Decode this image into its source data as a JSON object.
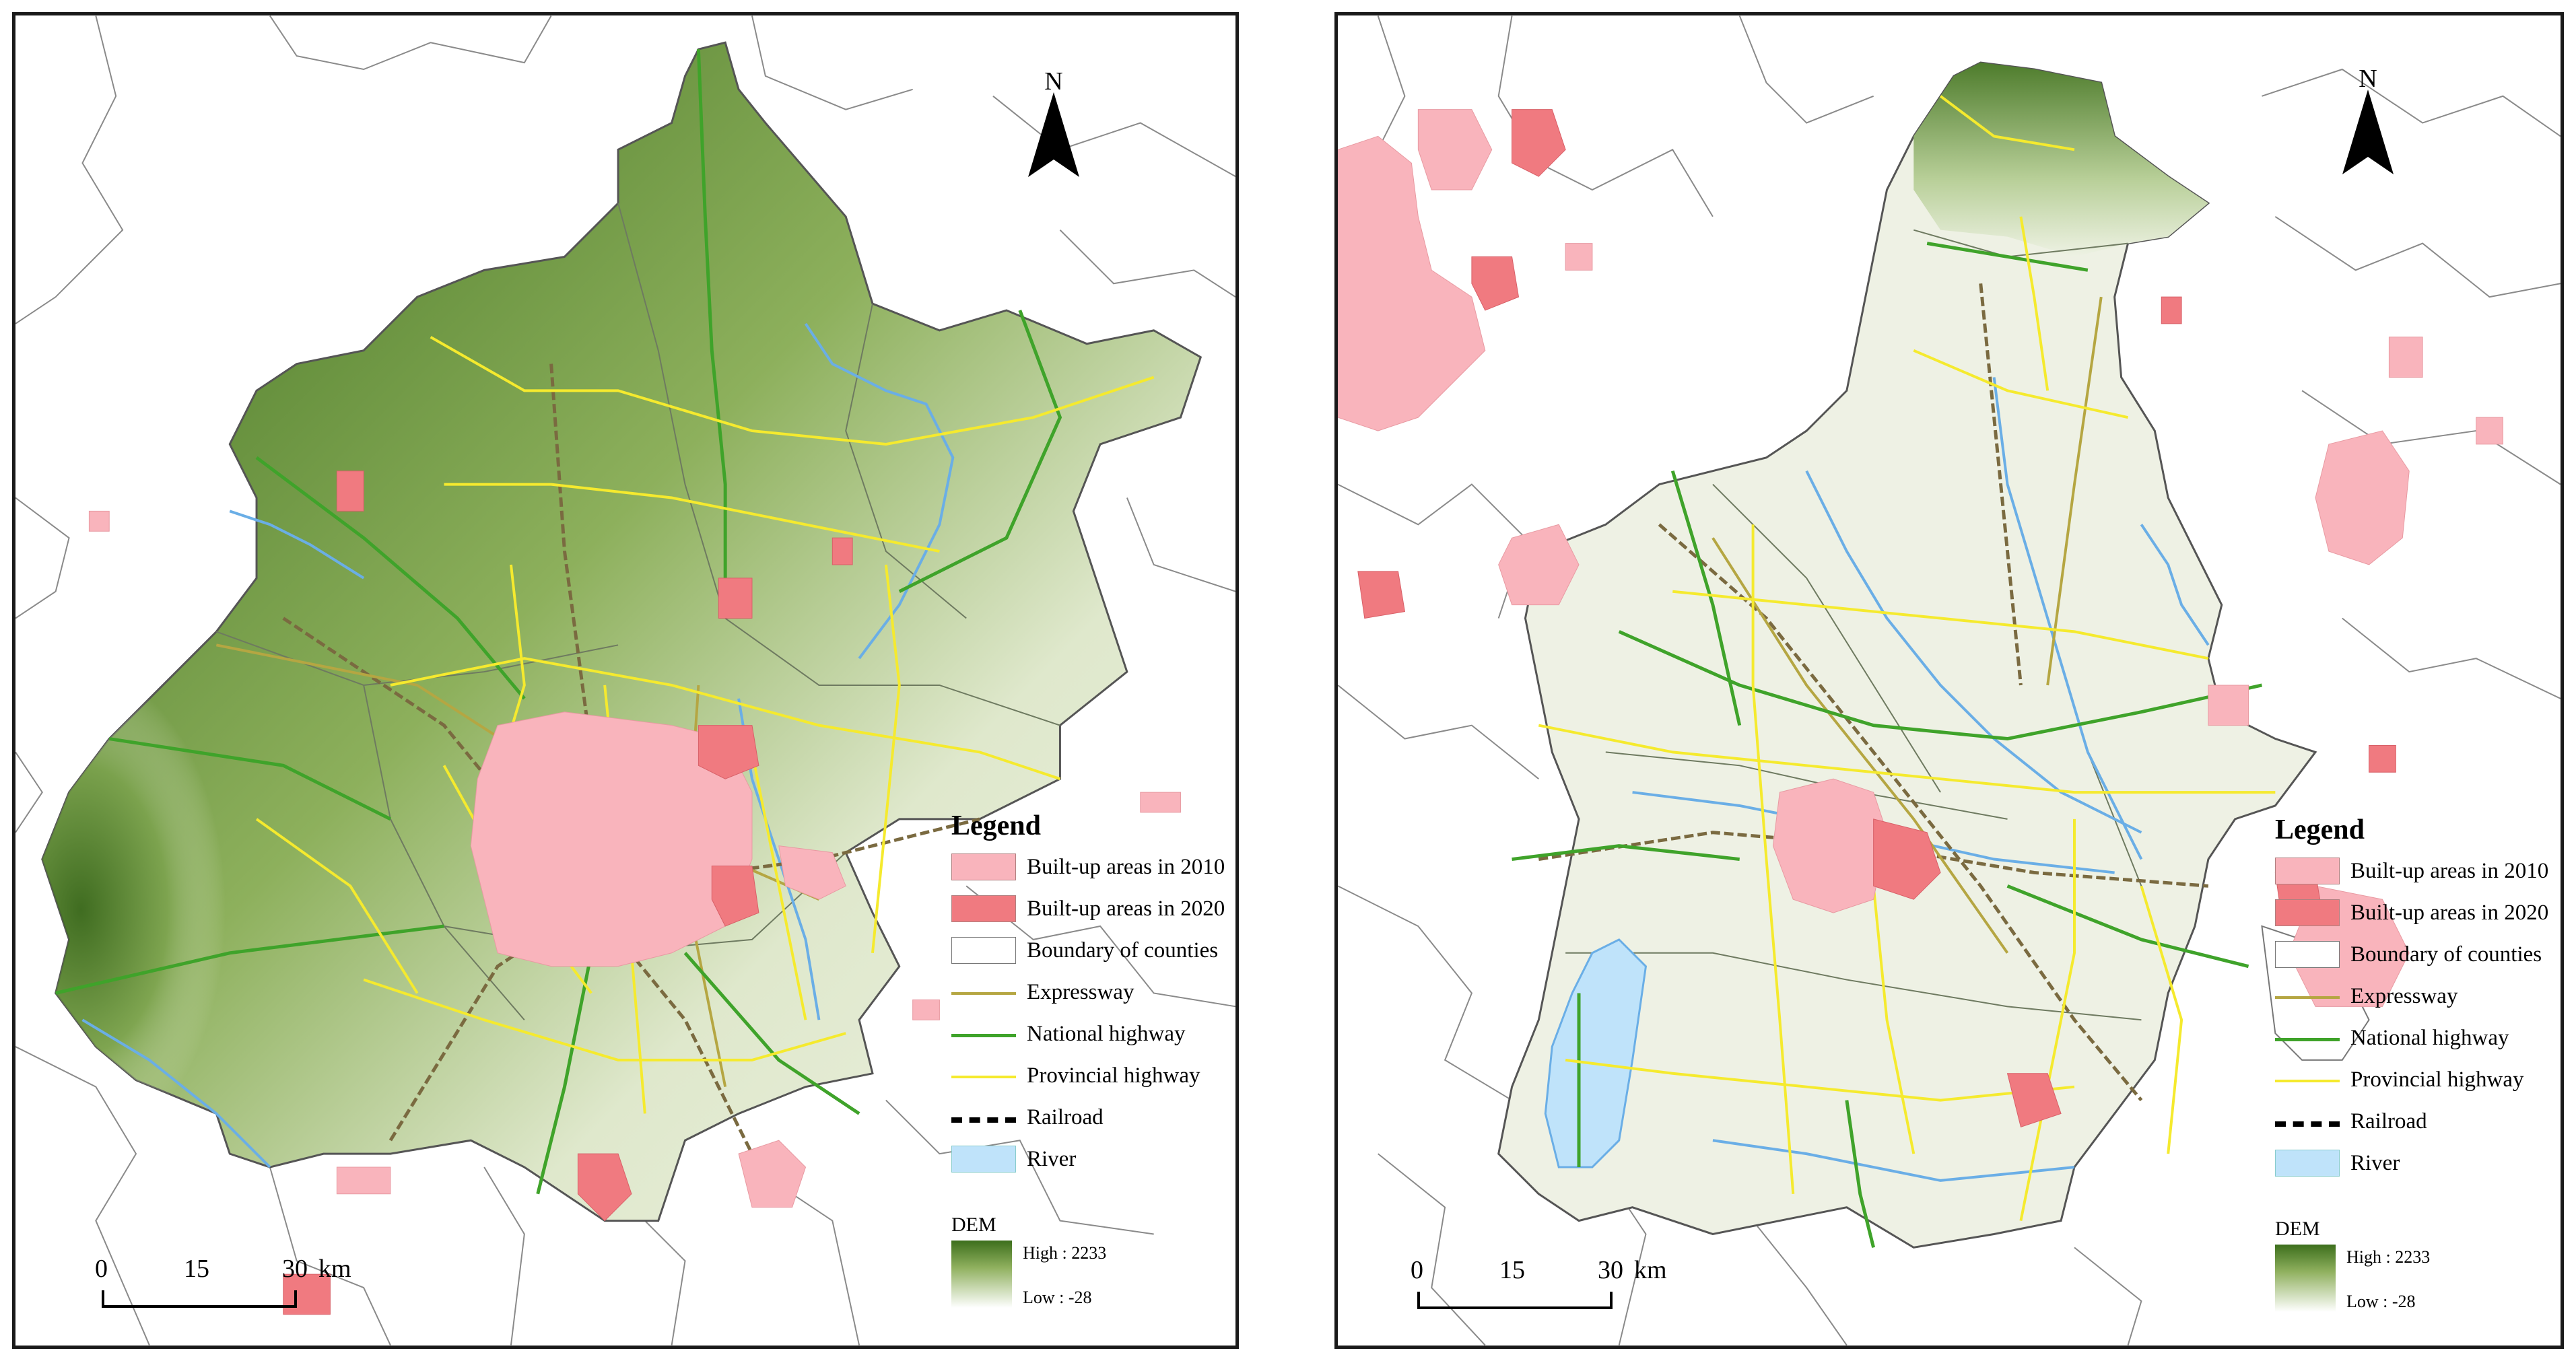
{
  "maps": [
    {
      "id": "left",
      "north_label": "N",
      "legend": {
        "title": "Legend",
        "items": [
          {
            "label": "Built-up areas in 2010",
            "symbol": "fill",
            "color": "#f9b4bc"
          },
          {
            "label": "Built-up areas in 2020",
            "symbol": "fill",
            "color": "#f07a80"
          },
          {
            "label": "Boundary of counties",
            "symbol": "fill",
            "color": "#ffffff"
          },
          {
            "label": "Expressway",
            "symbol": "line",
            "color": "#b5a642"
          },
          {
            "label": "National highway",
            "symbol": "line",
            "color": "#3fa32a"
          },
          {
            "label": "Provincial highway",
            "symbol": "line",
            "color": "#f5ea2e"
          },
          {
            "label": "Railroad",
            "symbol": "rail",
            "color": "#000000"
          },
          {
            "label": "River",
            "symbol": "fill",
            "color": "#bfe3fa"
          }
        ],
        "dem": {
          "title": "DEM",
          "high": "High : 2233",
          "low": "Low : -28"
        }
      },
      "scalebar": {
        "labels": [
          "0",
          "15",
          "30"
        ],
        "unit": "km"
      }
    },
    {
      "id": "right",
      "north_label": "N",
      "legend": {
        "title": "Legend",
        "items": [
          {
            "label": "Built-up areas in 2010",
            "symbol": "fill",
            "color": "#f9b4bc"
          },
          {
            "label": "Built-up areas in 2020",
            "symbol": "fill",
            "color": "#f07a80"
          },
          {
            "label": "Boundary of counties",
            "symbol": "fill",
            "color": "#ffffff"
          },
          {
            "label": "Expressway",
            "symbol": "line",
            "color": "#b5a642"
          },
          {
            "label": "National highway",
            "symbol": "line",
            "color": "#3fa32a"
          },
          {
            "label": "Provincial highway",
            "symbol": "line",
            "color": "#f5ea2e"
          },
          {
            "label": "Railroad",
            "symbol": "rail",
            "color": "#000000"
          },
          {
            "label": "River",
            "symbol": "fill",
            "color": "#bfe3fa"
          }
        ],
        "dem": {
          "title": "DEM",
          "high": "High : 2233",
          "low": "Low : -28"
        }
      },
      "scalebar": {
        "labels": [
          "0",
          "15",
          "30"
        ],
        "unit": "km"
      }
    }
  ],
  "colors": {
    "terrain_high": "#3c6e1c",
    "terrain_low": "#eef2e4",
    "plain": "#eef1e4",
    "boundary": "#808080",
    "frame": "#1a1a1a"
  }
}
